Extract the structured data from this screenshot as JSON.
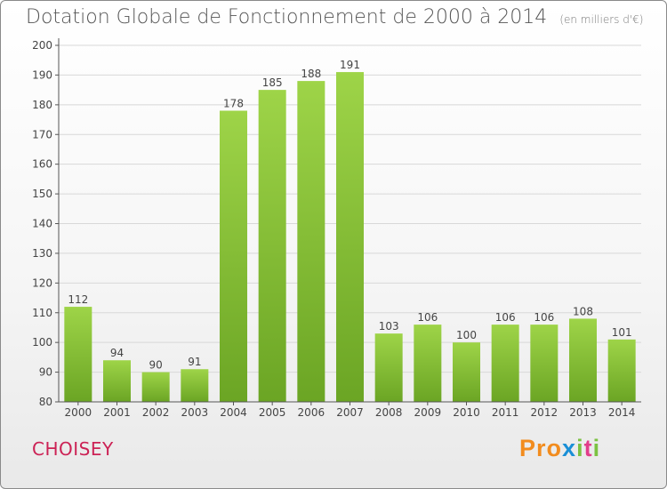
{
  "header": {
    "title": "Dotation Globale de Fonctionnement de 2000 à 2014",
    "subtitle": "(en milliers d'€)"
  },
  "footer": {
    "commune": "CHOISEY",
    "logo_letters": [
      "P",
      "r",
      "o",
      "x",
      "i",
      "t",
      "i"
    ]
  },
  "colors": {
    "bar_light": "#9ed448",
    "bar_dark": "#6ba524",
    "axis": "#555555",
    "grid": "#d8d8d8",
    "commune": "#cc2255",
    "logo": [
      "#f28c1e",
      "#f28c1e",
      "#f28c1e",
      "#1a8fd6",
      "#7cc242",
      "#e23d8b",
      "#7cc242"
    ]
  },
  "chart_data": {
    "type": "bar",
    "categories": [
      "2000",
      "2001",
      "2002",
      "2003",
      "2004",
      "2005",
      "2006",
      "2007",
      "2008",
      "2009",
      "2010",
      "2011",
      "2012",
      "2013",
      "2014"
    ],
    "values": [
      112,
      94,
      90,
      91,
      178,
      185,
      188,
      191,
      103,
      106,
      100,
      106,
      106,
      108,
      101
    ],
    "title": "Dotation Globale de Fonctionnement de 2000 à 2014",
    "subtitle": "(en milliers d'€)",
    "xlabel": "",
    "ylabel": "",
    "ylim": [
      80,
      200
    ],
    "yticks": [
      80,
      90,
      100,
      110,
      120,
      130,
      140,
      150,
      160,
      170,
      180,
      190,
      200
    ],
    "grid": true,
    "legend": "none"
  }
}
